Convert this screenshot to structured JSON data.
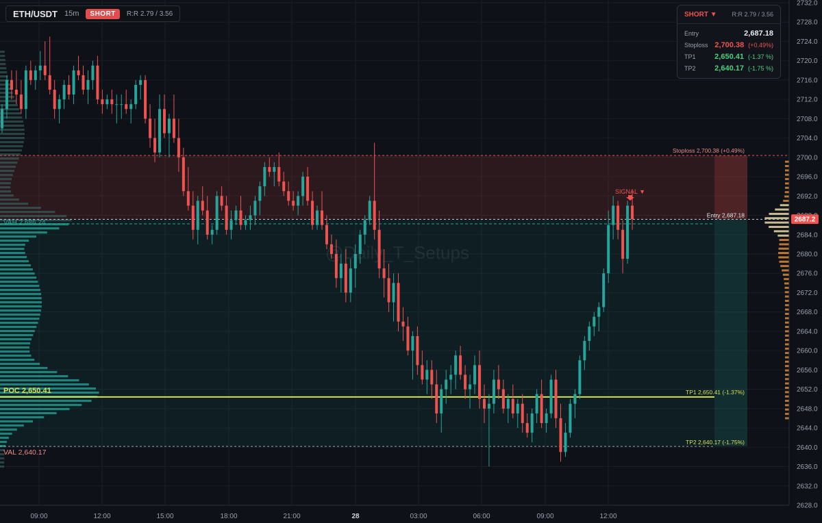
{
  "header": {
    "symbol": "ETH/USDT",
    "timeframe": "15m",
    "side_badge": "SHORT",
    "rr": "R:R 2.79 / 3.56"
  },
  "watermark": "@Daily_T_Setups",
  "signal_label": "SIGNAL ▼",
  "panel": {
    "title": "SHORT ▼",
    "rr": "R:R 2.79 / 3.56",
    "entry_label": "Entry",
    "entry_value": "2,687.18",
    "stop_label": "Stoploss",
    "stop_value": "2,700.38",
    "stop_pct": "(+0.49%)",
    "tp1_label": "TP1",
    "tp1_value": "2,650.41",
    "tp1_pct": "(-1.37 %)",
    "tp2_label": "TP2",
    "tp2_value": "2,640.17",
    "tp2_pct": "(-1.75 %)"
  },
  "chart_data": {
    "type": "candlestick",
    "ylim": [
      2628,
      2732
    ],
    "y_ticks": [
      "2628.0",
      "2632.0",
      "2636.0",
      "2640.0",
      "2644.0",
      "2648.0",
      "2652.0",
      "2656.0",
      "2660.0",
      "2664.0",
      "2668.0",
      "2672.0",
      "2676.0",
      "2680.0",
      "2684.0",
      "2688.0",
      "2692.0",
      "2696.0",
      "2700.0",
      "2704.0",
      "2708.0",
      "2712.0",
      "2716.0",
      "2720.0",
      "2724.0",
      "2728.0",
      "2732.0"
    ],
    "x_ticks": [
      "09:00",
      "12:00",
      "15:00",
      "18:00",
      "21:00",
      "28",
      "03:00",
      "06:00",
      "09:00",
      "12:00"
    ],
    "price_marker": "2687.2",
    "colors": {
      "up": "#26a69a",
      "down": "#ef5350",
      "poc": "#d4e157",
      "stop_zone": "#ef5350",
      "profit_zone": "#26a69a"
    },
    "levels": [
      {
        "key": "stop",
        "value": 2700.38,
        "label": "Stoploss 2,700.38 (+0.49%)"
      },
      {
        "key": "entry",
        "value": 2687.18,
        "label": "Entry 2,687.18"
      },
      {
        "key": "tp1",
        "value": 2650.41,
        "label": "TP1 2,650.41 (-1.37%)"
      },
      {
        "key": "tp2",
        "value": 2640.17,
        "label": "TP2 2,640.17 (-1.75%)"
      }
    ],
    "profile_levels": [
      {
        "key": "vah",
        "value": 2686.24,
        "label": "VAH  2,686.24"
      },
      {
        "key": "poc",
        "value": 2650.41,
        "label": "POC  2,650.41"
      },
      {
        "key": "val",
        "value": 2640.17,
        "label": "VAL  2,640.17"
      }
    ],
    "candles": [
      [
        2706,
        2711,
        2705,
        2710
      ],
      [
        2710,
        2717,
        2708,
        2716
      ],
      [
        2716,
        2718,
        2712,
        2714
      ],
      [
        2714,
        2718,
        2711,
        2713
      ],
      [
        2713,
        2716,
        2709,
        2710
      ],
      [
        2710,
        2719,
        2708,
        2718
      ],
      [
        2718,
        2720,
        2715,
        2716
      ],
      [
        2716,
        2719,
        2714,
        2718
      ],
      [
        2718,
        2722,
        2716,
        2719
      ],
      [
        2719,
        2724,
        2716,
        2717
      ],
      [
        2717,
        2725,
        2713,
        2714
      ],
      [
        2714,
        2716,
        2708,
        2710
      ],
      [
        2710,
        2713,
        2707,
        2712
      ],
      [
        2712,
        2716,
        2710,
        2715
      ],
      [
        2715,
        2717,
        2712,
        2713
      ],
      [
        2713,
        2719,
        2711,
        2718
      ],
      [
        2718,
        2721,
        2716,
        2717
      ],
      [
        2717,
        2719,
        2713,
        2714
      ],
      [
        2714,
        2718,
        2711,
        2716
      ],
      [
        2716,
        2720,
        2714,
        2719
      ],
      [
        2719,
        2721,
        2711,
        2712
      ],
      [
        2712,
        2714,
        2709,
        2711
      ],
      [
        2711,
        2713,
        2710,
        2712
      ],
      [
        2712,
        2714,
        2709,
        2711
      ],
      [
        2711,
        2713,
        2707,
        2711
      ],
      [
        2711,
        2713,
        2708,
        2711
      ],
      [
        2711,
        2714,
        2709,
        2710
      ],
      [
        2710,
        2712,
        2707,
        2711
      ],
      [
        2711,
        2716,
        2710,
        2715
      ],
      [
        2715,
        2717,
        2712,
        2716
      ],
      [
        2716,
        2717,
        2707,
        2708
      ],
      [
        2708,
        2711,
        2702,
        2704
      ],
      [
        2704,
        2708,
        2699,
        2701
      ],
      [
        2701,
        2713,
        2700,
        2710
      ],
      [
        2710,
        2713,
        2704,
        2705
      ],
      [
        2705,
        2709,
        2700,
        2708
      ],
      [
        2708,
        2713,
        2703,
        2704
      ],
      [
        2704,
        2708,
        2697,
        2700
      ],
      [
        2700,
        2702,
        2692,
        2693
      ],
      [
        2693,
        2698,
        2689,
        2690
      ],
      [
        2690,
        2693,
        2683,
        2685
      ],
      [
        2685,
        2692,
        2682,
        2691
      ],
      [
        2691,
        2694,
        2688,
        2689
      ],
      [
        2689,
        2692,
        2683,
        2684
      ],
      [
        2684,
        2686,
        2682,
        2685
      ],
      [
        2685,
        2693,
        2684,
        2692
      ],
      [
        2692,
        2694,
        2689,
        2690
      ],
      [
        2690,
        2692,
        2684,
        2685
      ],
      [
        2685,
        2689,
        2683,
        2687
      ],
      [
        2687,
        2690,
        2686,
        2689
      ],
      [
        2689,
        2692,
        2685,
        2686
      ],
      [
        2686,
        2688,
        2685,
        2687
      ],
      [
        2687,
        2690,
        2685,
        2688
      ],
      [
        2688,
        2692,
        2686,
        2691
      ],
      [
        2691,
        2695,
        2688,
        2694
      ],
      [
        2694,
        2699,
        2692,
        2698
      ],
      [
        2698,
        2700,
        2696,
        2697
      ],
      [
        2697,
        2699,
        2694,
        2698
      ],
      [
        2698,
        2701,
        2694,
        2695
      ],
      [
        2695,
        2697,
        2692,
        2693
      ],
      [
        2693,
        2695,
        2690,
        2691
      ],
      [
        2691,
        2693,
        2689,
        2690
      ],
      [
        2690,
        2693,
        2688,
        2692
      ],
      [
        2692,
        2697,
        2690,
        2696
      ],
      [
        2696,
        2698,
        2690,
        2691
      ],
      [
        2691,
        2693,
        2685,
        2686
      ],
      [
        2686,
        2690,
        2685,
        2689
      ],
      [
        2689,
        2693,
        2685,
        2686
      ],
      [
        2686,
        2688,
        2681,
        2682
      ],
      [
        2682,
        2684,
        2679,
        2680
      ],
      [
        2680,
        2683,
        2673,
        2675
      ],
      [
        2675,
        2680,
        2672,
        2678
      ],
      [
        2678,
        2681,
        2670,
        2672
      ],
      [
        2672,
        2679,
        2670,
        2677
      ],
      [
        2677,
        2682,
        2673,
        2680
      ],
      [
        2680,
        2685,
        2678,
        2684
      ],
      [
        2684,
        2688,
        2682,
        2687
      ],
      [
        2687,
        2692,
        2686,
        2691
      ],
      [
        2691,
        2703,
        2683,
        2685
      ],
      [
        2685,
        2689,
        2675,
        2677
      ],
      [
        2677,
        2681,
        2671,
        2675
      ],
      [
        2675,
        2678,
        2668,
        2670
      ],
      [
        2670,
        2676,
        2666,
        2674
      ],
      [
        2674,
        2676,
        2664,
        2666
      ],
      [
        2666,
        2669,
        2662,
        2665
      ],
      [
        2665,
        2667,
        2659,
        2660
      ],
      [
        2660,
        2664,
        2654,
        2663
      ],
      [
        2663,
        2665,
        2655,
        2657
      ],
      [
        2657,
        2660,
        2653,
        2654
      ],
      [
        2654,
        2658,
        2651,
        2656
      ],
      [
        2656,
        2658,
        2650,
        2653
      ],
      [
        2653,
        2656,
        2645,
        2647
      ],
      [
        2647,
        2653,
        2643,
        2652
      ],
      [
        2652,
        2656,
        2649,
        2654
      ],
      [
        2654,
        2657,
        2651,
        2655
      ],
      [
        2655,
        2660,
        2652,
        2659
      ],
      [
        2659,
        2661,
        2654,
        2655
      ],
      [
        2655,
        2657,
        2650,
        2652
      ],
      [
        2652,
        2655,
        2648,
        2653
      ],
      [
        2653,
        2659,
        2651,
        2657
      ],
      [
        2657,
        2660,
        2648,
        2650
      ],
      [
        2650,
        2653,
        2645,
        2648
      ],
      [
        2648,
        2651,
        2636,
        2649
      ],
      [
        2649,
        2656,
        2647,
        2654
      ],
      [
        2654,
        2657,
        2650,
        2652
      ],
      [
        2652,
        2654,
        2647,
        2648
      ],
      [
        2648,
        2651,
        2645,
        2650
      ],
      [
        2650,
        2653,
        2646,
        2647
      ],
      [
        2647,
        2650,
        2644,
        2649
      ],
      [
        2649,
        2651,
        2643,
        2645
      ],
      [
        2645,
        2647,
        2642,
        2643
      ],
      [
        2643,
        2648,
        2641,
        2647
      ],
      [
        2647,
        2652,
        2645,
        2651
      ],
      [
        2651,
        2654,
        2644,
        2645
      ],
      [
        2645,
        2648,
        2643,
        2647
      ],
      [
        2647,
        2655,
        2646,
        2654
      ],
      [
        2654,
        2656,
        2644,
        2646
      ],
      [
        2646,
        2649,
        2637,
        2639
      ],
      [
        2639,
        2645,
        2638,
        2643
      ],
      [
        2643,
        2650,
        2642,
        2649
      ],
      [
        2649,
        2652,
        2646,
        2651
      ],
      [
        2651,
        2659,
        2650,
        2658
      ],
      [
        2658,
        2663,
        2656,
        2662
      ],
      [
        2662,
        2666,
        2660,
        2665
      ],
      [
        2665,
        2668,
        2663,
        2667
      ],
      [
        2667,
        2670,
        2664,
        2669
      ],
      [
        2669,
        2677,
        2668,
        2676
      ],
      [
        2676,
        2689,
        2674,
        2686
      ],
      [
        2686,
        2692,
        2683,
        2690
      ],
      [
        2690,
        2691,
        2683,
        2685
      ],
      [
        2685,
        2687,
        2676,
        2679
      ],
      [
        2679,
        2691,
        2678,
        2690
      ],
      [
        2690,
        2693,
        2685,
        2687.2
      ]
    ]
  }
}
